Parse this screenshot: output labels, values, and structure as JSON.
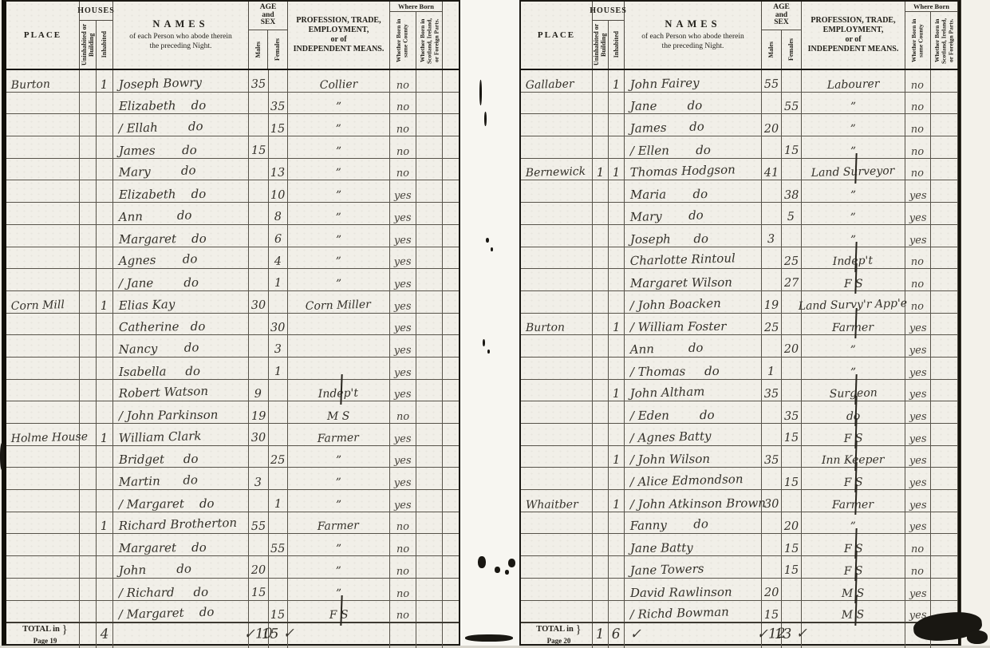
{
  "header": {
    "place": "PLACE",
    "houses": "HOUSES",
    "uninhabited": "Uninhabited or Building",
    "inhabited": "Inhabited",
    "names_title": "NAMES",
    "names_sub1": "of each Person who abode therein",
    "names_sub2": "the preceding Night.",
    "age1": "AGE",
    "age2": "and",
    "age3": "SEX",
    "males": "Males",
    "females": "Females",
    "prof1": "PROFESSION, TRADE,",
    "prof2": "EMPLOYMENT,",
    "prof3": "or of",
    "prof4": "INDEPENDENT MEANS.",
    "where_born": "Where Born",
    "born_county": "Whether Born in same County",
    "born_other": "Whether Born in Scotland, Ireland, or Foreign Parts."
  },
  "left_page": {
    "rows": [
      {
        "p": "Burton",
        "u": "",
        "i": "1",
        "n": "Joseph Bowry",
        "m": "35",
        "f": "",
        "pr": "Collier",
        "b1": "no"
      },
      {
        "p": "",
        "u": "",
        "i": "",
        "n": "Elizabeth    do",
        "m": "",
        "f": "35",
        "pr": "”",
        "b1": "no"
      },
      {
        "p": "",
        "u": "",
        "i": "",
        "n": "Ellah        do",
        "m": "",
        "f": "15",
        "pr": "”",
        "b1": "no",
        "mark": true
      },
      {
        "p": "",
        "u": "",
        "i": "",
        "n": "James       do",
        "m": "15",
        "f": "",
        "pr": "”",
        "b1": "no"
      },
      {
        "p": "",
        "u": "",
        "i": "",
        "n": "Mary        do",
        "m": "",
        "f": "13",
        "pr": "”",
        "b1": "no"
      },
      {
        "p": "",
        "u": "",
        "i": "",
        "n": "Elizabeth    do",
        "m": "",
        "f": "10",
        "pr": "”",
        "b1": "yes"
      },
      {
        "p": "",
        "u": "",
        "i": "",
        "n": "Ann         do",
        "m": "",
        "f": "8",
        "pr": "”",
        "b1": "yes"
      },
      {
        "p": "",
        "u": "",
        "i": "",
        "n": "Margaret    do",
        "m": "",
        "f": "6",
        "pr": "”",
        "b1": "yes"
      },
      {
        "p": "",
        "u": "",
        "i": "",
        "n": "Agnes       do",
        "m": "",
        "f": "4",
        "pr": "”",
        "b1": "yes"
      },
      {
        "p": "",
        "u": "",
        "i": "",
        "n": "Jane        do",
        "m": "",
        "f": "1",
        "pr": "”",
        "b1": "yes",
        "mark": true
      },
      {
        "p": "Corn Mill",
        "u": "",
        "i": "1",
        "n": "Elias Kay",
        "m": "30",
        "f": "",
        "pr": "Corn Miller",
        "b1": "yes"
      },
      {
        "p": "",
        "u": "",
        "i": "",
        "n": "Catherine   do",
        "m": "",
        "f": "30",
        "pr": "",
        "b1": "yes"
      },
      {
        "p": "",
        "u": "",
        "i": "",
        "n": "Nancy       do",
        "m": "",
        "f": "3",
        "pr": "",
        "b1": "yes"
      },
      {
        "p": "",
        "u": "",
        "i": "",
        "n": "Isabella     do",
        "m": "",
        "f": "1",
        "pr": "",
        "b1": "yes"
      },
      {
        "p": "",
        "u": "",
        "i": "",
        "n": "Robert Watson",
        "m": "9",
        "f": "",
        "pr": "Indep't",
        "b1": "yes",
        "strike": true
      },
      {
        "p": "",
        "u": "",
        "i": "",
        "n": "John Parkinson",
        "m": "19",
        "f": "",
        "pr": "M S",
        "b1": "no",
        "mark": true
      },
      {
        "p": "Holme House",
        "u": "",
        "i": "1",
        "n": "William Clark",
        "m": "30",
        "f": "",
        "pr": "Farmer",
        "b1": "yes"
      },
      {
        "p": "",
        "u": "",
        "i": "",
        "n": "Bridget     do",
        "m": "",
        "f": "25",
        "pr": "”",
        "b1": "yes"
      },
      {
        "p": "",
        "u": "",
        "i": "",
        "n": "Martin      do",
        "m": "3",
        "f": "",
        "pr": "”",
        "b1": "yes"
      },
      {
        "p": "",
        "u": "",
        "i": "",
        "n": "Margaret    do",
        "m": "",
        "f": "1",
        "pr": "”",
        "b1": "yes",
        "mark": true
      },
      {
        "p": "",
        "u": "",
        "i": "1",
        "n": "Richard Brotherton",
        "m": "55",
        "f": "",
        "pr": "Farmer",
        "b1": "no"
      },
      {
        "p": "",
        "u": "",
        "i": "",
        "n": "Margaret    do",
        "m": "",
        "f": "55",
        "pr": "”",
        "b1": "no"
      },
      {
        "p": "",
        "u": "",
        "i": "",
        "n": "John        do",
        "m": "20",
        "f": "",
        "pr": "”",
        "b1": "no"
      },
      {
        "p": "",
        "u": "",
        "i": "",
        "n": "Richard     do",
        "m": "15",
        "f": "",
        "pr": "”",
        "b1": "no",
        "mark": true
      },
      {
        "p": "",
        "u": "",
        "i": "",
        "n": "Margaret    do",
        "m": "",
        "f": "15",
        "pr": "F S",
        "b1": "no",
        "mark": true,
        "strike": true
      }
    ],
    "total_label": "TOTAL in",
    "total_page": "Page 19",
    "totals": {
      "u": "",
      "i": "4",
      "names": "",
      "m": "✓10",
      "f": "15 ✓"
    }
  },
  "right_page": {
    "rows": [
      {
        "p": "Gallaber",
        "u": "",
        "i": "1",
        "n": "John Fairey",
        "m": "55",
        "f": "",
        "pr": "Labourer",
        "b1": "no"
      },
      {
        "p": "",
        "u": "",
        "i": "",
        "n": "Jane        do",
        "m": "",
        "f": "55",
        "pr": "”",
        "b1": "no"
      },
      {
        "p": "",
        "u": "",
        "i": "",
        "n": "James      do",
        "m": "20",
        "f": "",
        "pr": "”",
        "b1": "no"
      },
      {
        "p": "",
        "u": "",
        "i": "",
        "n": "Ellen       do",
        "m": "",
        "f": "15",
        "pr": "”",
        "b1": "no",
        "mark": true
      },
      {
        "p": "Bernewick",
        "u": "1",
        "i": "1",
        "n": "Thomas Hodgson",
        "m": "41",
        "f": "",
        "pr": "Land Surveyor",
        "b1": "no",
        "strike": true
      },
      {
        "p": "",
        "u": "",
        "i": "",
        "n": "Maria       do",
        "m": "",
        "f": "38",
        "pr": "”",
        "b1": "yes"
      },
      {
        "p": "",
        "u": "",
        "i": "",
        "n": "Mary       do",
        "m": "",
        "f": "5",
        "pr": "”",
        "b1": "yes"
      },
      {
        "p": "",
        "u": "",
        "i": "",
        "n": "Joseph      do",
        "m": "3",
        "f": "",
        "pr": "”",
        "b1": "yes"
      },
      {
        "p": "",
        "u": "",
        "i": "",
        "n": "Charlotte Rintoul",
        "m": "",
        "f": "25",
        "pr": "Indep't",
        "b1": "no",
        "strike": true
      },
      {
        "p": "",
        "u": "",
        "i": "",
        "n": "Margaret Wilson",
        "m": "",
        "f": "27",
        "pr": "F S",
        "b1": "no",
        "strike": true
      },
      {
        "p": "",
        "u": "",
        "i": "",
        "n": "John Boacken",
        "m": "19",
        "f": "",
        "pr": "Land Survy'r App'e",
        "b1": "no",
        "mark": true
      },
      {
        "p": "Burton",
        "u": "",
        "i": "1",
        "n": "William Foster",
        "m": "25",
        "f": "",
        "pr": "Farmer",
        "b1": "yes",
        "mark": true,
        "strike": true
      },
      {
        "p": "",
        "u": "",
        "i": "",
        "n": "Ann         do",
        "m": "",
        "f": "20",
        "pr": "”",
        "b1": "yes"
      },
      {
        "p": "",
        "u": "",
        "i": "",
        "n": "Thomas     do",
        "m": "1",
        "f": "",
        "pr": "”",
        "b1": "yes",
        "mark": true
      },
      {
        "p": "",
        "u": "",
        "i": "1",
        "n": "John Altham",
        "m": "35",
        "f": "",
        "pr": "Surgeon",
        "b1": "yes",
        "strike": true
      },
      {
        "p": "",
        "u": "",
        "i": "",
        "n": "Eden        do",
        "m": "",
        "f": "35",
        "pr": "do",
        "b1": "yes",
        "mark": true,
        "strike": true
      },
      {
        "p": "",
        "u": "",
        "i": "",
        "n": "Agnes Batty",
        "m": "",
        "f": "15",
        "pr": "F S",
        "b1": "yes",
        "mark": true,
        "strike": true
      },
      {
        "p": "",
        "u": "",
        "i": "1",
        "n": "John Wilson",
        "m": "35",
        "f": "",
        "pr": "Inn Keeper",
        "b1": "yes",
        "mark": true,
        "strike": true
      },
      {
        "p": "",
        "u": "",
        "i": "",
        "n": "Alice Edmondson",
        "m": "",
        "f": "15",
        "pr": "F S",
        "b1": "yes",
        "mark": true,
        "strike": true
      },
      {
        "p": "Whaitber",
        "u": "",
        "i": "1",
        "n": "John Atkinson Brown",
        "m": "30",
        "f": "",
        "pr": "Farmer",
        "b1": "yes",
        "mark": true,
        "strike": true
      },
      {
        "p": "",
        "u": "",
        "i": "",
        "n": "Fanny       do",
        "m": "",
        "f": "20",
        "pr": "”",
        "b1": "yes"
      },
      {
        "p": "",
        "u": "",
        "i": "",
        "n": "Jane Batty",
        "m": "",
        "f": "15",
        "pr": "F S",
        "b1": "no",
        "strike": true
      },
      {
        "p": "",
        "u": "",
        "i": "",
        "n": "Jane Towers",
        "m": "",
        "f": "15",
        "pr": "F S",
        "b1": "no",
        "strike": true
      },
      {
        "p": "",
        "u": "",
        "i": "",
        "n": "David Rawlinson",
        "m": "20",
        "f": "",
        "pr": "M S",
        "b1": "yes",
        "strike": true
      },
      {
        "p": "",
        "u": "",
        "i": "",
        "n": "Richd Bowman",
        "m": "15",
        "f": "",
        "pr": "M S",
        "b1": "yes",
        "mark": true,
        "strike": true
      }
    ],
    "total_label": "TOTAL in",
    "total_page": "Page 20",
    "totals": {
      "u": "1",
      "i": "6",
      "names": "✓",
      "m": "✓12",
      "f": "13 ✓"
    }
  }
}
